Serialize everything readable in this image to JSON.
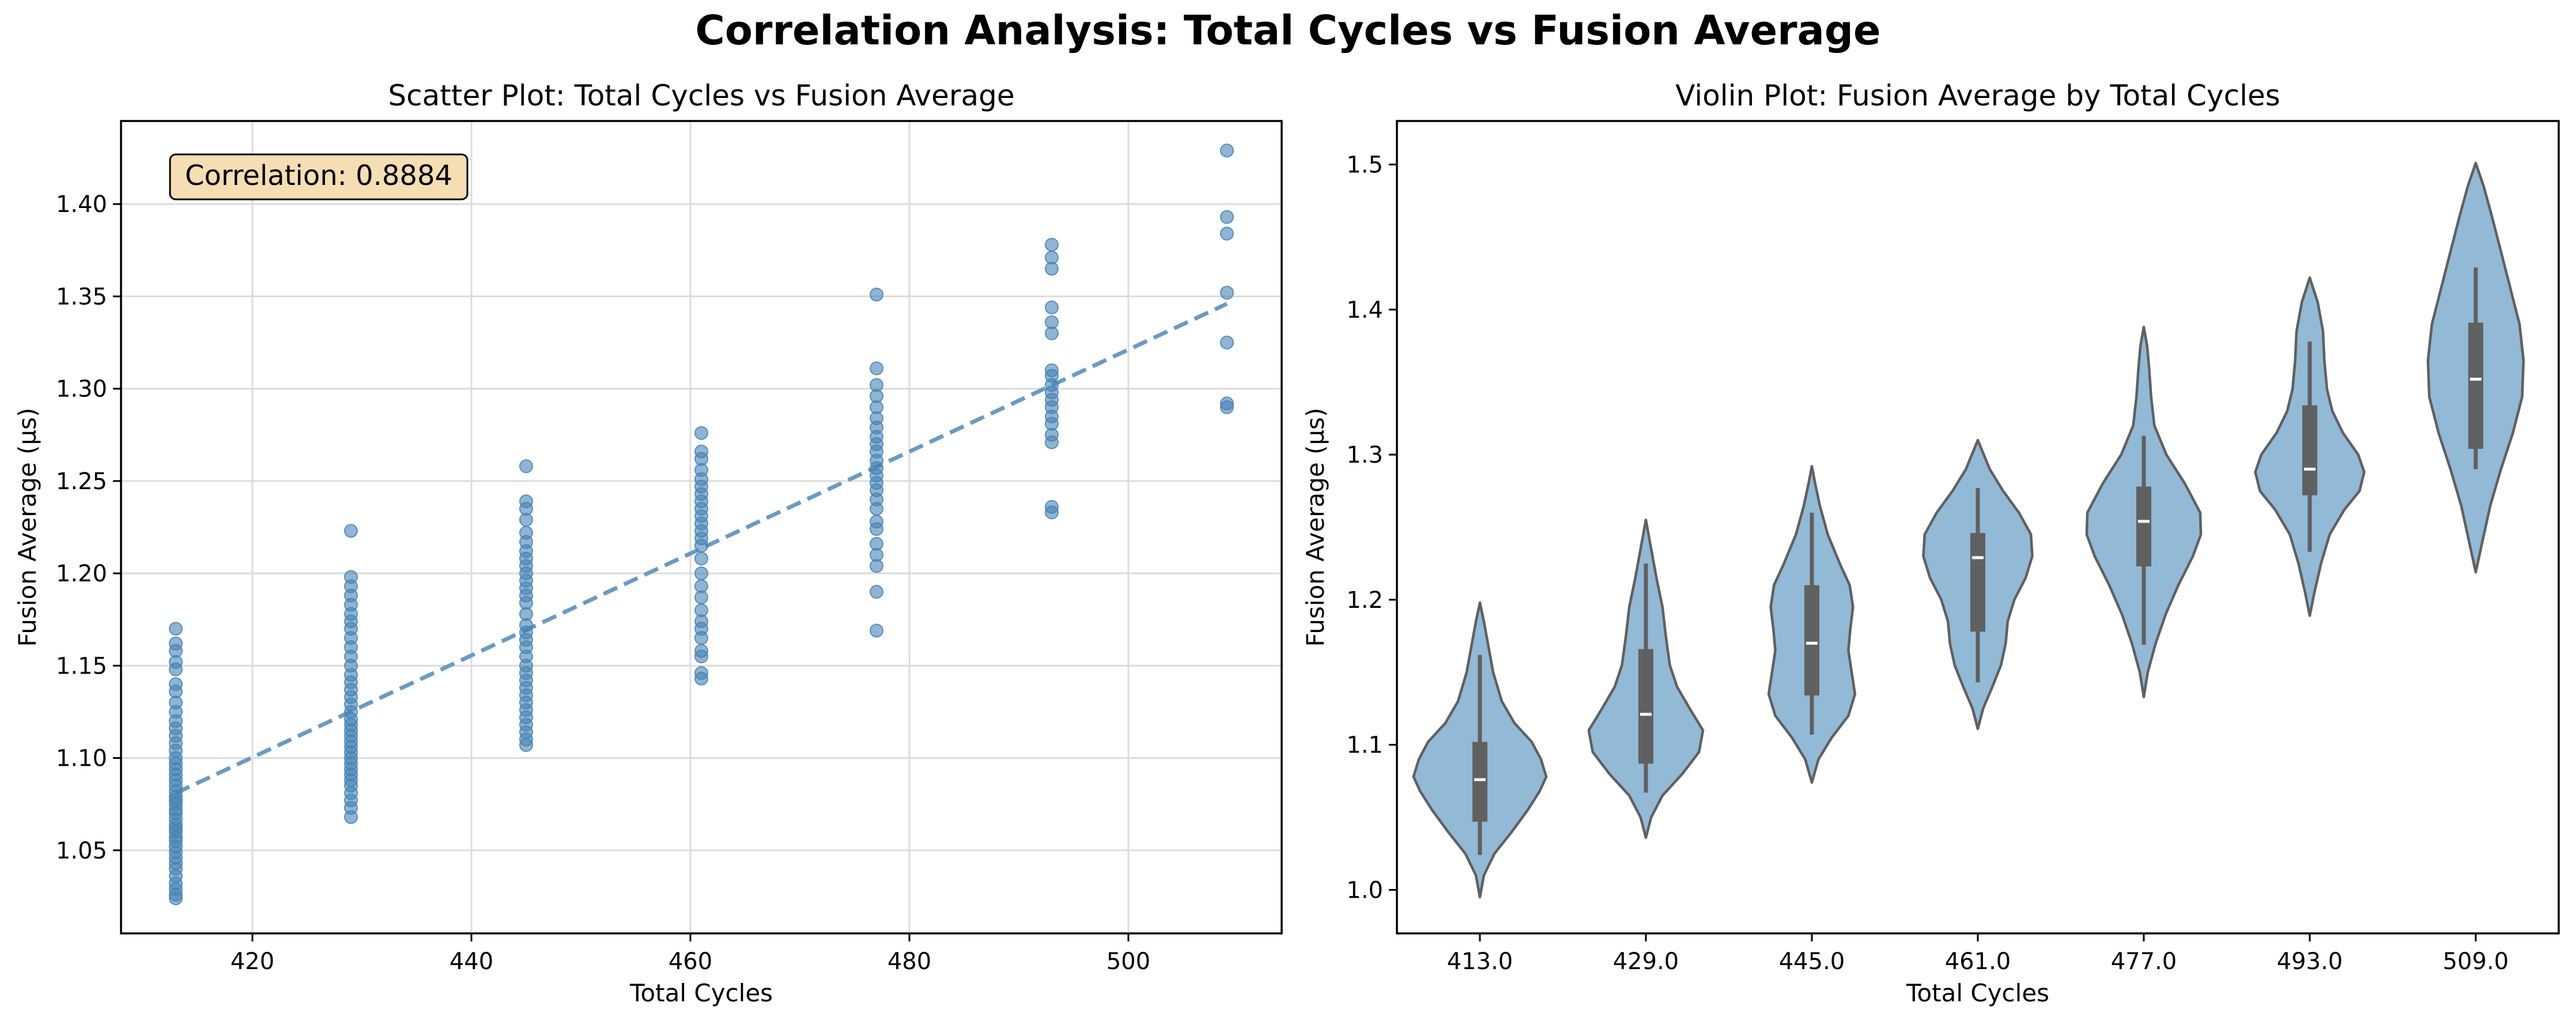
{
  "figure": {
    "title": "Correlation Analysis: Total Cycles vs Fusion Average"
  },
  "chart_data": [
    {
      "type": "scatter",
      "title": "Scatter Plot: Total Cycles vs Fusion Average",
      "xlabel": "Total Cycles",
      "ylabel": "Fusion Average (µs)",
      "xlim": [
        408,
        514
      ],
      "ylim": [
        1.005,
        1.445
      ],
      "xticks": [
        420,
        440,
        460,
        480,
        500
      ],
      "yticks": [
        1.05,
        1.1,
        1.15,
        1.2,
        1.25,
        1.3,
        1.35,
        1.4
      ],
      "grid": true,
      "annotation": "Correlation: 0.8884",
      "annotation_position": "top-left",
      "series_color": "#4682b4",
      "trendline": {
        "x": [
          413,
          509
        ],
        "y": [
          1.081,
          1.346
        ],
        "style": "dashed"
      },
      "points": [
        {
          "x": 413,
          "y": [
            1.17,
            1.162,
            1.158,
            1.152,
            1.148,
            1.14,
            1.136,
            1.13,
            1.125,
            1.12,
            1.116,
            1.112,
            1.108,
            1.104,
            1.1,
            1.097,
            1.094,
            1.091,
            1.088,
            1.085,
            1.082,
            1.079,
            1.077,
            1.075,
            1.072,
            1.07,
            1.067,
            1.064,
            1.062,
            1.06,
            1.057,
            1.055,
            1.052,
            1.049,
            1.046,
            1.043,
            1.04,
            1.036,
            1.032,
            1.029,
            1.026,
            1.024
          ]
        },
        {
          "x": 429,
          "y": [
            1.223,
            1.198,
            1.193,
            1.188,
            1.183,
            1.178,
            1.174,
            1.17,
            1.165,
            1.16,
            1.155,
            1.15,
            1.145,
            1.141,
            1.137,
            1.133,
            1.129,
            1.125,
            1.121,
            1.118,
            1.115,
            1.112,
            1.109,
            1.106,
            1.103,
            1.1,
            1.097,
            1.094,
            1.091,
            1.088,
            1.085,
            1.081,
            1.077,
            1.073,
            1.068
          ]
        },
        {
          "x": 445,
          "y": [
            1.258,
            1.239,
            1.235,
            1.229,
            1.222,
            1.217,
            1.212,
            1.208,
            1.204,
            1.2,
            1.196,
            1.192,
            1.188,
            1.184,
            1.178,
            1.172,
            1.168,
            1.164,
            1.16,
            1.155,
            1.15,
            1.146,
            1.142,
            1.138,
            1.134,
            1.13,
            1.126,
            1.122,
            1.118,
            1.114,
            1.11,
            1.107
          ]
        },
        {
          "x": 461,
          "y": [
            1.276,
            1.266,
            1.262,
            1.256,
            1.251,
            1.247,
            1.243,
            1.239,
            1.235,
            1.231,
            1.227,
            1.223,
            1.219,
            1.215,
            1.208,
            1.2,
            1.193,
            1.187,
            1.18,
            1.174,
            1.17,
            1.165,
            1.158,
            1.155,
            1.146,
            1.143
          ]
        },
        {
          "x": 477,
          "y": [
            1.351,
            1.311,
            1.302,
            1.296,
            1.29,
            1.284,
            1.279,
            1.274,
            1.27,
            1.266,
            1.261,
            1.257,
            1.253,
            1.249,
            1.245,
            1.24,
            1.235,
            1.228,
            1.224,
            1.216,
            1.21,
            1.204,
            1.19,
            1.169
          ]
        },
        {
          "x": 493,
          "y": [
            1.378,
            1.371,
            1.365,
            1.344,
            1.336,
            1.33,
            1.31,
            1.307,
            1.302,
            1.298,
            1.294,
            1.29,
            1.285,
            1.281,
            1.275,
            1.271,
            1.236,
            1.233
          ]
        },
        {
          "x": 509,
          "y": [
            1.429,
            1.393,
            1.384,
            1.352,
            1.325,
            1.292,
            1.29
          ]
        }
      ]
    },
    {
      "type": "violin",
      "title": "Violin Plot: Fusion Average by Total Cycles",
      "xlabel": "Total Cycles",
      "ylabel": "Fusion Average (µs)",
      "categories": [
        "413.0",
        "429.0",
        "445.0",
        "461.0",
        "477.0",
        "493.0",
        "509.0"
      ],
      "ylim": [
        0.97,
        1.53
      ],
      "yticks": [
        1.0,
        1.1,
        1.2,
        1.3,
        1.4,
        1.5
      ],
      "grid": false,
      "fill_color": "#92b9d6",
      "edge_color": "#606060",
      "violins": [
        {
          "min": 0.995,
          "max": 1.198,
          "profile": [
            [
              0.995,
              0
            ],
            [
              1.01,
              0.06
            ],
            [
              1.025,
              0.22
            ],
            [
              1.04,
              0.48
            ],
            [
              1.055,
              0.72
            ],
            [
              1.068,
              0.9
            ],
            [
              1.078,
              1.0
            ],
            [
              1.09,
              0.92
            ],
            [
              1.102,
              0.78
            ],
            [
              1.115,
              0.52
            ],
            [
              1.13,
              0.33
            ],
            [
              1.15,
              0.2
            ],
            [
              1.17,
              0.12
            ],
            [
              1.185,
              0.06
            ],
            [
              1.198,
              0
            ]
          ],
          "q1": 1.047,
          "median": 1.076,
          "q3": 1.102,
          "whisker_low": 1.024,
          "whisker_high": 1.162
        },
        {
          "min": 1.036,
          "max": 1.255,
          "profile": [
            [
              1.036,
              0
            ],
            [
              1.05,
              0.08
            ],
            [
              1.065,
              0.25
            ],
            [
              1.08,
              0.55
            ],
            [
              1.095,
              0.8
            ],
            [
              1.11,
              0.86
            ],
            [
              1.125,
              0.66
            ],
            [
              1.14,
              0.47
            ],
            [
              1.155,
              0.36
            ],
            [
              1.175,
              0.3
            ],
            [
              1.195,
              0.25
            ],
            [
              1.215,
              0.16
            ],
            [
              1.235,
              0.08
            ],
            [
              1.255,
              0
            ]
          ],
          "q1": 1.087,
          "median": 1.121,
          "q3": 1.166,
          "whisker_low": 1.067,
          "whisker_high": 1.225
        },
        {
          "min": 1.074,
          "max": 1.292,
          "profile": [
            [
              1.074,
              0
            ],
            [
              1.09,
              0.1
            ],
            [
              1.105,
              0.3
            ],
            [
              1.12,
              0.55
            ],
            [
              1.135,
              0.65
            ],
            [
              1.15,
              0.6
            ],
            [
              1.165,
              0.55
            ],
            [
              1.18,
              0.58
            ],
            [
              1.195,
              0.62
            ],
            [
              1.21,
              0.57
            ],
            [
              1.225,
              0.42
            ],
            [
              1.245,
              0.24
            ],
            [
              1.265,
              0.12
            ],
            [
              1.28,
              0.05
            ],
            [
              1.292,
              0
            ]
          ],
          "q1": 1.134,
          "median": 1.17,
          "q3": 1.21,
          "whisker_low": 1.107,
          "whisker_high": 1.26
        },
        {
          "min": 1.111,
          "max": 1.31,
          "profile": [
            [
              1.111,
              0
            ],
            [
              1.125,
              0.08
            ],
            [
              1.14,
              0.22
            ],
            [
              1.155,
              0.35
            ],
            [
              1.17,
              0.42
            ],
            [
              1.185,
              0.45
            ],
            [
              1.2,
              0.55
            ],
            [
              1.215,
              0.72
            ],
            [
              1.23,
              0.82
            ],
            [
              1.245,
              0.8
            ],
            [
              1.26,
              0.62
            ],
            [
              1.275,
              0.38
            ],
            [
              1.29,
              0.18
            ],
            [
              1.31,
              0
            ]
          ],
          "q1": 1.178,
          "median": 1.229,
          "q3": 1.246,
          "whisker_low": 1.143,
          "whisker_high": 1.277
        },
        {
          "min": 1.133,
          "max": 1.388,
          "profile": [
            [
              1.133,
              0
            ],
            [
              1.15,
              0.06
            ],
            [
              1.17,
              0.18
            ],
            [
              1.19,
              0.33
            ],
            [
              1.21,
              0.52
            ],
            [
              1.23,
              0.74
            ],
            [
              1.245,
              0.86
            ],
            [
              1.26,
              0.85
            ],
            [
              1.28,
              0.62
            ],
            [
              1.3,
              0.34
            ],
            [
              1.32,
              0.16
            ],
            [
              1.34,
              0.11
            ],
            [
              1.36,
              0.08
            ],
            [
              1.375,
              0.05
            ],
            [
              1.388,
              0
            ]
          ],
          "q1": 1.223,
          "median": 1.254,
          "q3": 1.278,
          "whisker_low": 1.169,
          "whisker_high": 1.313
        },
        {
          "min": 1.189,
          "max": 1.422,
          "profile": [
            [
              1.189,
              0
            ],
            [
              1.205,
              0.07
            ],
            [
              1.225,
              0.17
            ],
            [
              1.245,
              0.3
            ],
            [
              1.262,
              0.52
            ],
            [
              1.275,
              0.75
            ],
            [
              1.288,
              0.82
            ],
            [
              1.3,
              0.73
            ],
            [
              1.315,
              0.5
            ],
            [
              1.33,
              0.34
            ],
            [
              1.345,
              0.26
            ],
            [
              1.365,
              0.22
            ],
            [
              1.385,
              0.2
            ],
            [
              1.405,
              0.12
            ],
            [
              1.422,
              0
            ]
          ],
          "q1": 1.272,
          "median": 1.29,
          "q3": 1.334,
          "whisker_low": 1.233,
          "whisker_high": 1.378
        },
        {
          "min": 1.219,
          "max": 1.501,
          "profile": [
            [
              1.219,
              0
            ],
            [
              1.24,
              0.1
            ],
            [
              1.265,
              0.22
            ],
            [
              1.29,
              0.38
            ],
            [
              1.315,
              0.56
            ],
            [
              1.34,
              0.7
            ],
            [
              1.365,
              0.72
            ],
            [
              1.39,
              0.66
            ],
            [
              1.415,
              0.52
            ],
            [
              1.44,
              0.38
            ],
            [
              1.465,
              0.24
            ],
            [
              1.485,
              0.12
            ],
            [
              1.501,
              0
            ]
          ],
          "q1": 1.304,
          "median": 1.352,
          "q3": 1.391,
          "whisker_low": 1.29,
          "whisker_high": 1.429
        }
      ]
    }
  ]
}
